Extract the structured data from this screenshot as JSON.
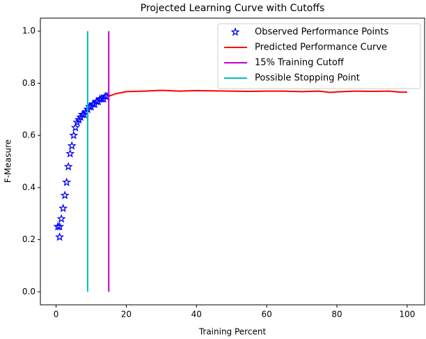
{
  "chart_data": {
    "type": "line",
    "title": "Projected Learning Curve with Cutoffs",
    "x_label": "Training Percent",
    "y_label": "F-Measure",
    "xlim": [
      -4.475,
      104.975
    ],
    "ylim": [
      -0.05,
      1.05
    ],
    "xticks": [
      0,
      20,
      40,
      60,
      80,
      100
    ],
    "yticks": [
      {
        "value": 0,
        "label": "0.0"
      },
      0.2,
      0.4,
      0.6,
      0.8,
      {
        "value": 1,
        "label": "1.0"
      }
    ],
    "legend": "upper right",
    "series": [
      {
        "name": "Observed Performance Points",
        "color": "#0000ff",
        "marker": "star",
        "x": [
          0.5,
          1,
          1,
          1.5,
          2,
          2.5,
          3,
          3.5,
          4,
          4.5,
          5,
          5.5,
          6,
          6.5,
          7,
          7.5,
          8,
          8.5,
          9,
          9.5,
          10,
          10.5,
          11,
          11.5,
          12,
          12.5,
          13,
          13.5,
          14,
          14.5
        ],
        "values": [
          0.25,
          0.21,
          0.25,
          0.28,
          0.32,
          0.37,
          0.42,
          0.48,
          0.53,
          0.56,
          0.6,
          0.63,
          0.65,
          0.66,
          0.67,
          0.68,
          0.68,
          0.69,
          0.7,
          0.71,
          0.71,
          0.72,
          0.72,
          0.73,
          0.73,
          0.74,
          0.74,
          0.74,
          0.75,
          0.75
        ]
      },
      {
        "name": "Predicted Performance Curve",
        "color": "#ff0000",
        "x": [
          15,
          17,
          20,
          25,
          30,
          35,
          40,
          45,
          50,
          55,
          60,
          65,
          70,
          75,
          78,
          80,
          85,
          90,
          95,
          98,
          100
        ],
        "values": [
          0.75,
          0.76,
          0.768,
          0.77,
          0.773,
          0.77,
          0.772,
          0.771,
          0.77,
          0.769,
          0.77,
          0.77,
          0.768,
          0.77,
          0.765,
          0.767,
          0.77,
          0.769,
          0.77,
          0.766,
          0.766
        ]
      },
      {
        "name": "15% Training Cutoff",
        "color": "#bf00bf",
        "x": [
          15,
          15
        ],
        "values": [
          0,
          1
        ]
      },
      {
        "name": "Possible Stopping Point",
        "color": "#00bfbf",
        "x": [
          9,
          9
        ],
        "values": [
          0,
          1
        ]
      }
    ]
  }
}
